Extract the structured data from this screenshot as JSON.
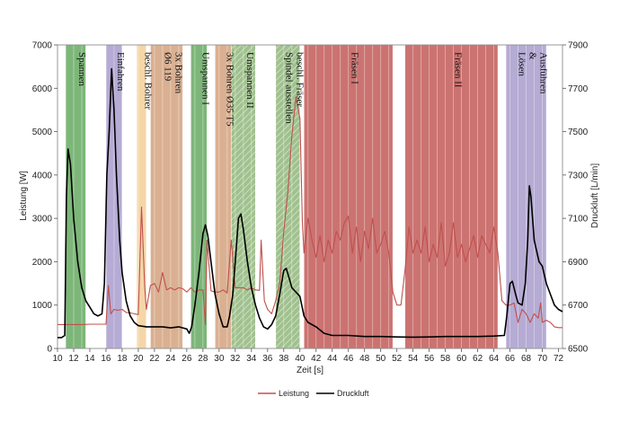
{
  "chart_data": {
    "type": "line",
    "xlabel": "Zeit [s]",
    "ylabel_left": "Leistung [W]",
    "ylabel_right": "Druckluft [L/min]",
    "xlim": [
      10,
      72.5
    ],
    "ylim_left": [
      0,
      7000
    ],
    "ylim_right": [
      6500,
      7900
    ],
    "xticks": [
      10,
      12,
      14,
      16,
      18,
      20,
      22,
      24,
      26,
      28,
      30,
      32,
      34,
      36,
      38,
      40,
      42,
      44,
      46,
      48,
      50,
      52,
      54,
      56,
      58,
      60,
      62,
      64,
      66,
      68,
      70,
      72
    ],
    "yticks_left": [
      0,
      1000,
      2000,
      3000,
      4000,
      5000,
      6000,
      7000
    ],
    "yticks_right": [
      6500,
      6700,
      6900,
      7100,
      7300,
      7500,
      7700,
      7900
    ],
    "grid": "vertical",
    "legend_position": "bottom-center",
    "phases": [
      {
        "label": "Spannen",
        "start": 11,
        "end": 13.5,
        "color": "#66a962",
        "hatch": false
      },
      {
        "label": "Einfahren",
        "start": 16,
        "end": 18,
        "color": "#a89ccc",
        "hatch": false
      },
      {
        "label": "beschl. Bohrer",
        "start": 19.8,
        "end": 21,
        "color": "#f3cf98",
        "hatch": false
      },
      {
        "label": "3x Bohren\nØ6 119",
        "start": 21.5,
        "end": 25.5,
        "color": "#d4a27e",
        "hatch": false
      },
      {
        "label": "Umspannen I",
        "start": 26.5,
        "end": 28.5,
        "color": "#66a962",
        "hatch": false
      },
      {
        "label": "3x Bohren Ø35 T5",
        "start": 29.5,
        "end": 31.5,
        "color": "#d4a27e",
        "hatch": false
      },
      {
        "label": "Umspannen II",
        "start": 31.5,
        "end": 34.5,
        "color": "#8fb67a",
        "hatch": true
      },
      {
        "label": "beschl. Fräser\nSpindel ausstellen",
        "start": 37,
        "end": 40,
        "color": "#8fb67a",
        "hatch": true
      },
      {
        "label": "Fräsen I",
        "start": 40.5,
        "end": 51.5,
        "color": "#c25a58",
        "hatch": false
      },
      {
        "label": "Fräsen II",
        "start": 53,
        "end": 64.5,
        "color": "#c25a58",
        "hatch": false
      },
      {
        "label": "Ausführen\n&\nLösen",
        "start": 65.5,
        "end": 70.5,
        "color": "#a89ccc",
        "hatch": false
      }
    ],
    "series": [
      {
        "name": "Leistung",
        "color": "#c0504d",
        "axis": "left",
        "points": [
          [
            10,
            550
          ],
          [
            11,
            550
          ],
          [
            12,
            550
          ],
          [
            13,
            550
          ],
          [
            14,
            560
          ],
          [
            15,
            560
          ],
          [
            16,
            560
          ],
          [
            16.3,
            1450
          ],
          [
            16.6,
            800
          ],
          [
            17,
            900
          ],
          [
            17.5,
            880
          ],
          [
            18,
            900
          ],
          [
            18.5,
            830
          ],
          [
            19,
            820
          ],
          [
            19.5,
            800
          ],
          [
            20,
            780
          ],
          [
            20.4,
            3260
          ],
          [
            20.8,
            1400
          ],
          [
            21,
            900
          ],
          [
            21.5,
            1450
          ],
          [
            22,
            1500
          ],
          [
            22.5,
            1300
          ],
          [
            23,
            1750
          ],
          [
            23.5,
            1350
          ],
          [
            24,
            1400
          ],
          [
            24.5,
            1350
          ],
          [
            25,
            1400
          ],
          [
            25.5,
            1380
          ],
          [
            26,
            1300
          ],
          [
            26.5,
            1400
          ],
          [
            27,
            1300
          ],
          [
            27.5,
            1350
          ],
          [
            28,
            1350
          ],
          [
            28.3,
            550
          ],
          [
            28.5,
            2500
          ],
          [
            29,
            1330
          ],
          [
            29.5,
            1300
          ],
          [
            30,
            1300
          ],
          [
            30.5,
            1350
          ],
          [
            31,
            1280
          ],
          [
            31.5,
            2500
          ],
          [
            32,
            1400
          ],
          [
            32.5,
            1400
          ],
          [
            33,
            1400
          ],
          [
            33.5,
            1350
          ],
          [
            34,
            1400
          ],
          [
            34.5,
            1350
          ],
          [
            35,
            1340
          ],
          [
            35.2,
            2500
          ],
          [
            35.6,
            1100
          ],
          [
            36,
            900
          ],
          [
            36.5,
            800
          ],
          [
            37,
            1100
          ],
          [
            37.5,
            1500
          ],
          [
            38,
            2700
          ],
          [
            38.5,
            3600
          ],
          [
            39,
            4900
          ],
          [
            39.5,
            5800
          ],
          [
            40,
            5300
          ],
          [
            40.3,
            2900
          ],
          [
            40.5,
            2200
          ],
          [
            41,
            3000
          ],
          [
            41.5,
            2500
          ],
          [
            42,
            2100
          ],
          [
            42.5,
            2600
          ],
          [
            43,
            2000
          ],
          [
            43.5,
            2500
          ],
          [
            44,
            2200
          ],
          [
            44.5,
            2700
          ],
          [
            45,
            2500
          ],
          [
            45.5,
            2900
          ],
          [
            46,
            3050
          ],
          [
            46.5,
            2200
          ],
          [
            47,
            2800
          ],
          [
            47.5,
            2000
          ],
          [
            48,
            2700
          ],
          [
            48.5,
            2300
          ],
          [
            49,
            3000
          ],
          [
            49.5,
            2200
          ],
          [
            50,
            2400
          ],
          [
            50.5,
            2700
          ],
          [
            51,
            2200
          ],
          [
            51.5,
            1300
          ],
          [
            52,
            1000
          ],
          [
            52.5,
            1000
          ],
          [
            53,
            1800
          ],
          [
            53.5,
            2800
          ],
          [
            54,
            2200
          ],
          [
            54.5,
            2500
          ],
          [
            55,
            2200
          ],
          [
            55.5,
            2800
          ],
          [
            56,
            2000
          ],
          [
            56.5,
            2400
          ],
          [
            57,
            2100
          ],
          [
            57.5,
            2900
          ],
          [
            58,
            1900
          ],
          [
            58.5,
            2200
          ],
          [
            59,
            2900
          ],
          [
            59.5,
            2100
          ],
          [
            60,
            2400
          ],
          [
            60.5,
            2000
          ],
          [
            61,
            2300
          ],
          [
            61.5,
            2600
          ],
          [
            62,
            2100
          ],
          [
            62.5,
            2600
          ],
          [
            63,
            2400
          ],
          [
            63.5,
            2200
          ],
          [
            64,
            2800
          ],
          [
            64.5,
            2200
          ],
          [
            65,
            1100
          ],
          [
            65.5,
            1000
          ],
          [
            66,
            1000
          ],
          [
            66.5,
            1050
          ],
          [
            67,
            600
          ],
          [
            67.5,
            900
          ],
          [
            68,
            800
          ],
          [
            68.5,
            600
          ],
          [
            69,
            800
          ],
          [
            69.5,
            700
          ],
          [
            69.8,
            1050
          ],
          [
            70,
            600
          ],
          [
            70.5,
            650
          ],
          [
            71,
            600
          ],
          [
            71.5,
            500
          ],
          [
            72,
            480
          ],
          [
            72.5,
            480
          ]
        ]
      },
      {
        "name": "Druckluft",
        "color": "#000000",
        "axis": "right",
        "points": [
          [
            10,
            6550
          ],
          [
            10.5,
            6550
          ],
          [
            10.9,
            6560
          ],
          [
            11.1,
            7200
          ],
          [
            11.3,
            7420
          ],
          [
            11.6,
            7350
          ],
          [
            12,
            7100
          ],
          [
            12.5,
            6900
          ],
          [
            13,
            6780
          ],
          [
            13.5,
            6720
          ],
          [
            14,
            6690
          ],
          [
            14.5,
            6660
          ],
          [
            15,
            6650
          ],
          [
            15.5,
            6660
          ],
          [
            15.8,
            6800
          ],
          [
            16.1,
            7300
          ],
          [
            16.4,
            7500
          ],
          [
            16.7,
            7790
          ],
          [
            17,
            7600
          ],
          [
            17.3,
            7300
          ],
          [
            17.7,
            7000
          ],
          [
            18,
            6850
          ],
          [
            18.5,
            6720
          ],
          [
            19,
            6650
          ],
          [
            19.5,
            6620
          ],
          [
            20,
            6605
          ],
          [
            21,
            6600
          ],
          [
            22,
            6600
          ],
          [
            23,
            6600
          ],
          [
            24,
            6595
          ],
          [
            25,
            6600
          ],
          [
            26,
            6590
          ],
          [
            26.3,
            6570
          ],
          [
            26.6,
            6600
          ],
          [
            27,
            6700
          ],
          [
            27.5,
            6850
          ],
          [
            28,
            7030
          ],
          [
            28.3,
            7070
          ],
          [
            28.6,
            7020
          ],
          [
            29,
            6900
          ],
          [
            29.5,
            6750
          ],
          [
            30,
            6660
          ],
          [
            30.5,
            6600
          ],
          [
            31,
            6600
          ],
          [
            31.3,
            6650
          ],
          [
            31.7,
            6750
          ],
          [
            32,
            6900
          ],
          [
            32.4,
            7100
          ],
          [
            32.7,
            7120
          ],
          [
            33,
            7050
          ],
          [
            33.5,
            6900
          ],
          [
            34,
            6780
          ],
          [
            34.5,
            6700
          ],
          [
            35,
            6640
          ],
          [
            35.5,
            6600
          ],
          [
            36,
            6590
          ],
          [
            36.5,
            6610
          ],
          [
            37,
            6650
          ],
          [
            37.5,
            6750
          ],
          [
            38,
            6860
          ],
          [
            38.3,
            6870
          ],
          [
            38.7,
            6820
          ],
          [
            39,
            6780
          ],
          [
            39.5,
            6760
          ],
          [
            40,
            6740
          ],
          [
            40.5,
            6650
          ],
          [
            41,
            6620
          ],
          [
            42,
            6600
          ],
          [
            43,
            6570
          ],
          [
            44,
            6560
          ],
          [
            46,
            6560
          ],
          [
            48,
            6555
          ],
          [
            50,
            6555
          ],
          [
            52,
            6553
          ],
          [
            54,
            6552
          ],
          [
            56,
            6553
          ],
          [
            58,
            6555
          ],
          [
            60,
            6555
          ],
          [
            62,
            6555
          ],
          [
            64,
            6557
          ],
          [
            65.3,
            6560
          ],
          [
            65.6,
            6650
          ],
          [
            66,
            6800
          ],
          [
            66.3,
            6810
          ],
          [
            66.7,
            6750
          ],
          [
            67,
            6710
          ],
          [
            67.5,
            6700
          ],
          [
            67.9,
            6800
          ],
          [
            68.2,
            7000
          ],
          [
            68.4,
            7250
          ],
          [
            68.6,
            7200
          ],
          [
            69,
            7000
          ],
          [
            69.3,
            6950
          ],
          [
            69.6,
            6900
          ],
          [
            70,
            6880
          ],
          [
            70.5,
            6800
          ],
          [
            71,
            6750
          ],
          [
            71.5,
            6700
          ],
          [
            72,
            6680
          ],
          [
            72.5,
            6670
          ]
        ]
      }
    ]
  },
  "legend": [
    {
      "name": "Leistung",
      "color": "#c0504d"
    },
    {
      "name": "Druckluft",
      "color": "#000000"
    }
  ]
}
